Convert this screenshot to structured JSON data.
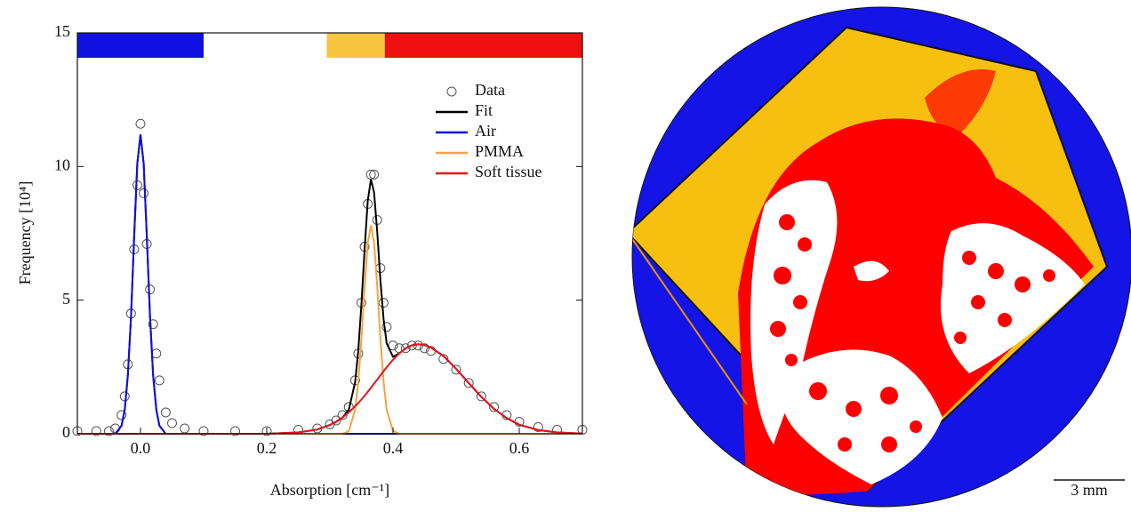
{
  "chart_data": {
    "type": "line",
    "x_label": "Absorption [cm⁻¹]",
    "y_label": "Frequency [10⁴]",
    "x": [
      -0.1,
      -0.07,
      -0.05,
      -0.04,
      -0.03,
      -0.025,
      -0.02,
      -0.015,
      -0.01,
      -0.005,
      0,
      0.005,
      0.01,
      0.015,
      0.02,
      0.025,
      0.03,
      0.04,
      0.05,
      0.07,
      0.1,
      0.15,
      0.2,
      0.25,
      0.28,
      0.3,
      0.31,
      0.32,
      0.33,
      0.34,
      0.345,
      0.35,
      0.355,
      0.36,
      0.365,
      0.37,
      0.375,
      0.38,
      0.385,
      0.39,
      0.4,
      0.41,
      0.42,
      0.43,
      0.44,
      0.45,
      0.46,
      0.48,
      0.5,
      0.52,
      0.54,
      0.56,
      0.58,
      0.6,
      0.63,
      0.66,
      0.7
    ],
    "series": [
      {
        "name": "Data",
        "type": "scatter",
        "color": "#555555",
        "values": [
          0.1,
          0.1,
          0.1,
          0.2,
          0.7,
          1.4,
          2.6,
          4.5,
          6.9,
          9.3,
          11.6,
          9.0,
          7.1,
          5.4,
          4.1,
          3.0,
          2.0,
          0.8,
          0.4,
          0.2,
          0.1,
          0.1,
          0.1,
          0.15,
          0.2,
          0.35,
          0.5,
          0.7,
          1.0,
          2.0,
          3.0,
          4.9,
          7.0,
          8.6,
          9.7,
          9.7,
          8.0,
          6.2,
          4.9,
          4.0,
          3.3,
          3.2,
          3.2,
          3.3,
          3.3,
          3.2,
          3.1,
          2.8,
          2.4,
          1.9,
          1.4,
          1.0,
          0.7,
          0.45,
          0.25,
          0.15,
          0.15
        ]
      },
      {
        "name": "Fit",
        "color": "#000000",
        "values": [
          0,
          0,
          0,
          0,
          0.3,
          0.9,
          2.2,
          4.4,
          7.4,
          10.1,
          11.2,
          10.1,
          7.4,
          4.4,
          2.2,
          0.9,
          0.3,
          0,
          0,
          0,
          0,
          0,
          0,
          0.05,
          0.16,
          0.33,
          0.45,
          0.61,
          0.9,
          1.93,
          3.1,
          4.85,
          6.92,
          8.72,
          9.52,
          9.03,
          7.53,
          5.76,
          4.29,
          3.38,
          2.88,
          3.01,
          3.2,
          3.31,
          3.35,
          3.32,
          3.23,
          2.91,
          2.43,
          1.9,
          1.38,
          0.93,
          0.59,
          0.34,
          0.14,
          0.05,
          0.01
        ]
      },
      {
        "name": "Air",
        "color": "#1010e0",
        "values": [
          0,
          0,
          0,
          0,
          0.3,
          0.9,
          2.2,
          4.4,
          7.4,
          10.1,
          11.2,
          10.1,
          7.4,
          4.4,
          2.2,
          0.9,
          0.3,
          0,
          0,
          0,
          0,
          0,
          0,
          0,
          0,
          0,
          0,
          0,
          0,
          0,
          0,
          0,
          0,
          0,
          0,
          0,
          0,
          0,
          0,
          0,
          0,
          0,
          0,
          0,
          0,
          0,
          0,
          0,
          0,
          0,
          0,
          0,
          0,
          0,
          0,
          0,
          0
        ]
      },
      {
        "name": "PMMA",
        "color": "#f4a340",
        "values": [
          0,
          0,
          0,
          0,
          0,
          0,
          0,
          0,
          0,
          0,
          0,
          0,
          0,
          0,
          0,
          0,
          0,
          0,
          0,
          0,
          0,
          0,
          0,
          0,
          0,
          0,
          0,
          0,
          0.1,
          0.9,
          1.95,
          3.57,
          5.5,
          7.15,
          7.8,
          7.15,
          5.5,
          3.57,
          1.95,
          0.89,
          0.11,
          0,
          0,
          0,
          0,
          0,
          0,
          0,
          0,
          0,
          0,
          0,
          0,
          0,
          0,
          0,
          0
        ]
      },
      {
        "name": "Soft tissue",
        "color": "#e8141e",
        "values": [
          0,
          0,
          0,
          0,
          0,
          0,
          0,
          0,
          0,
          0,
          0,
          0,
          0,
          0,
          0,
          0,
          0,
          0,
          0,
          0,
          0,
          0,
          0,
          0.05,
          0.16,
          0.33,
          0.45,
          0.61,
          0.8,
          1.03,
          1.15,
          1.28,
          1.42,
          1.57,
          1.72,
          1.88,
          2.03,
          2.19,
          2.34,
          2.49,
          2.77,
          3.01,
          3.2,
          3.31,
          3.35,
          3.32,
          3.23,
          2.91,
          2.43,
          1.9,
          1.38,
          0.93,
          0.59,
          0.34,
          0.14,
          0.05,
          0.01
        ]
      }
    ],
    "bands": [
      {
        "color": "#1010e0",
        "range": [
          -0.1,
          0.1
        ]
      },
      {
        "color": "#f8c540",
        "range": [
          0.295,
          0.387
        ]
      },
      {
        "color": "#ee0f0f",
        "range": [
          0.387,
          0.7
        ]
      }
    ],
    "xlim": [
      -0.1,
      0.7
    ],
    "ylim": [
      0,
      15
    ],
    "xticks": [
      {
        "value": 0,
        "label": "0.0"
      },
      0.2,
      0.4,
      0.6
    ],
    "yticks": [
      0,
      5,
      10,
      15
    ],
    "legend": "upper right"
  },
  "image": {
    "scale_bar": "3 mm"
  }
}
